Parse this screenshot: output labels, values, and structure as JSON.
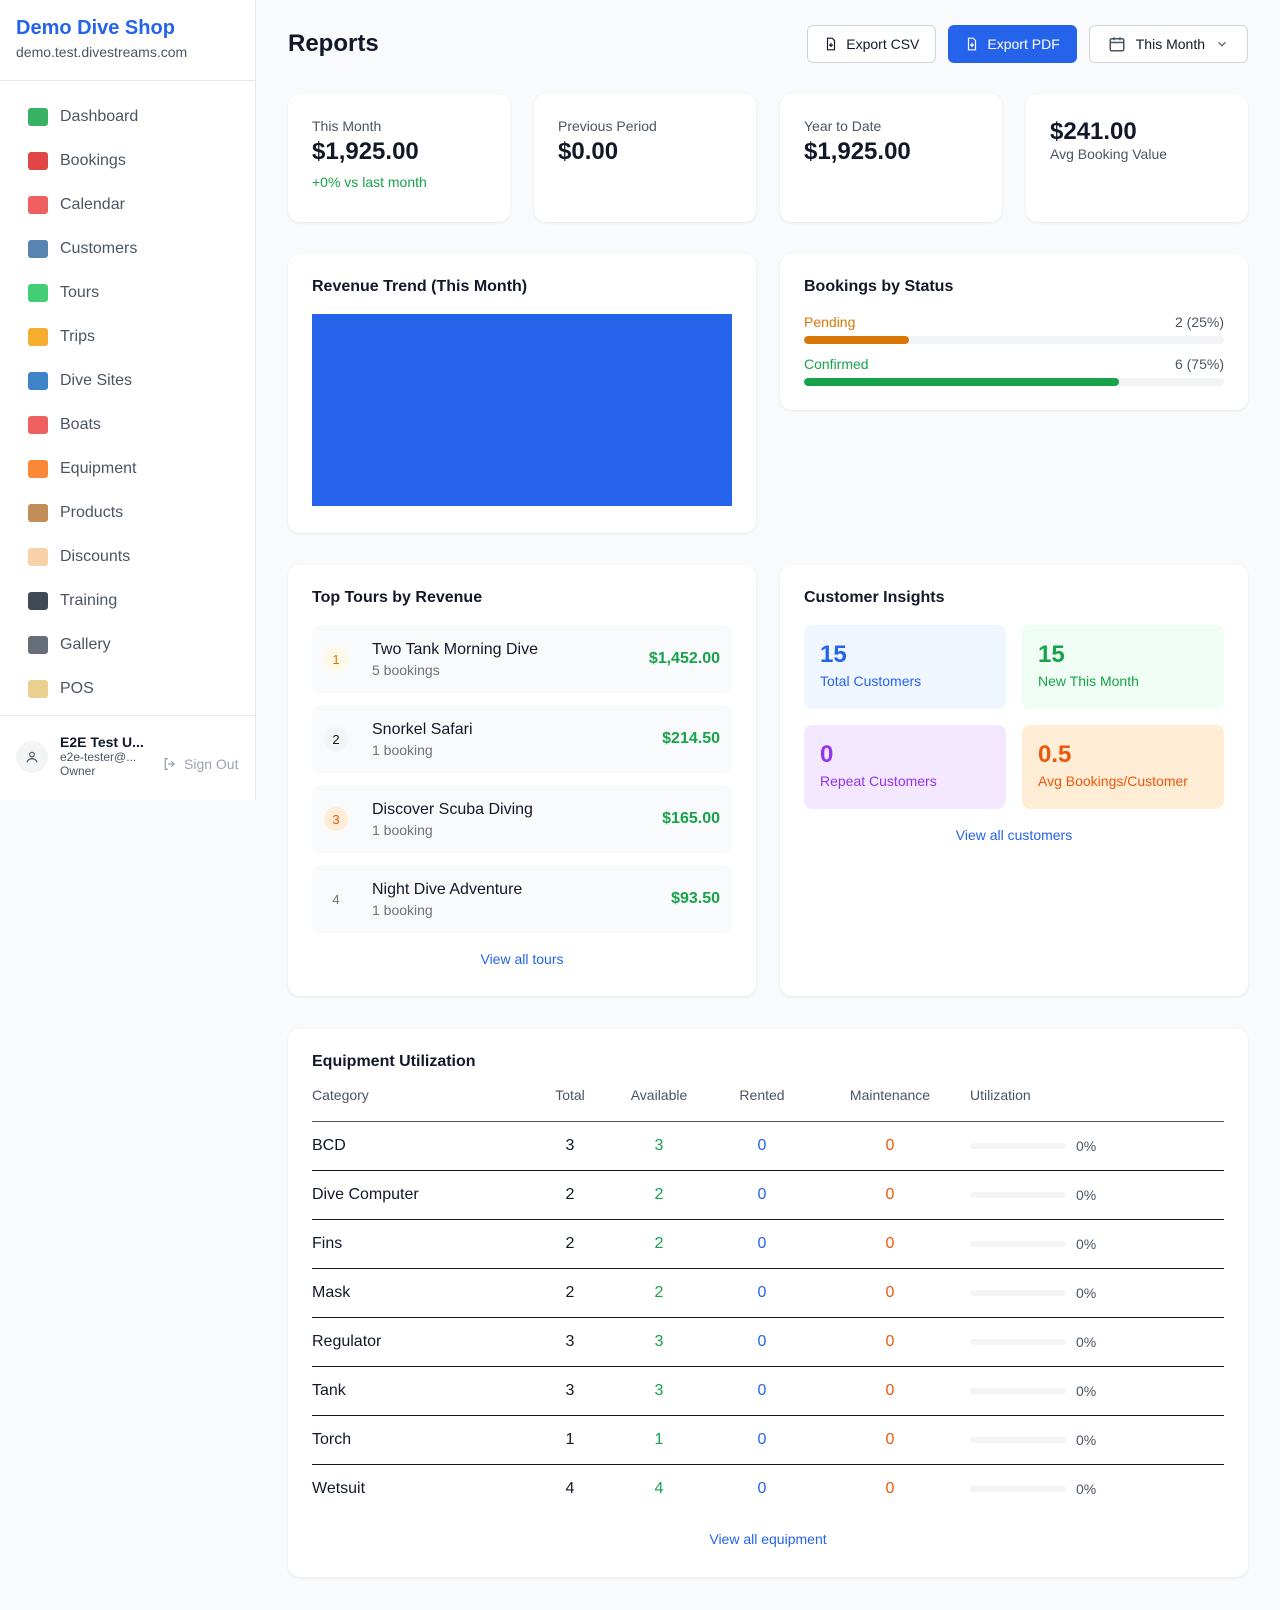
{
  "sidebar": {
    "brand": "Demo Dive Shop",
    "url": "demo.test.divestreams.com",
    "items": [
      {
        "label": "Dashboard",
        "icon": "bar-chart-icon",
        "color": "#16a34a"
      },
      {
        "label": "Bookings",
        "icon": "calendar-date-icon",
        "color": "#dc2626"
      },
      {
        "label": "Calendar",
        "icon": "spiral-calendar-icon",
        "color": "#ef4444"
      },
      {
        "label": "Customers",
        "icon": "users-icon",
        "color": "#3b6ea5"
      },
      {
        "label": "Tours",
        "icon": "island-icon",
        "color": "#22c55e"
      },
      {
        "label": "Trips",
        "icon": "speedboat-icon",
        "color": "#f59e0b"
      },
      {
        "label": "Dive Sites",
        "icon": "wave-icon",
        "color": "#1d6fbf"
      },
      {
        "label": "Boats",
        "icon": "sailboat-icon",
        "color": "#ef4444"
      },
      {
        "label": "Equipment",
        "icon": "diving-mask-icon",
        "color": "#f97316"
      },
      {
        "label": "Products",
        "icon": "package-icon",
        "color": "#b7793a"
      },
      {
        "label": "Discounts",
        "icon": "tag-icon",
        "color": "#f8c99a"
      },
      {
        "label": "Training",
        "icon": "graduation-cap-icon",
        "color": "#1f2937"
      },
      {
        "label": "Gallery",
        "icon": "camera-icon",
        "color": "#4b5563"
      },
      {
        "label": "POS",
        "icon": "credit-card-icon",
        "color": "#e5c87a"
      }
    ],
    "user": {
      "name": "E2E Test U...",
      "email": "e2e-tester@...",
      "role": "Owner",
      "signout": "Sign Out"
    }
  },
  "header": {
    "title": "Reports",
    "export_csv": "Export CSV",
    "export_pdf": "Export PDF",
    "period": "This Month"
  },
  "stats": [
    {
      "label": "This Month",
      "value": "$1,925.00",
      "sub": "+0% vs last month"
    },
    {
      "label": "Previous Period",
      "value": "$0.00"
    },
    {
      "label": "Year to Date",
      "value": "$1,925.00"
    },
    {
      "value": "$241.00",
      "label": "Avg Booking Value"
    }
  ],
  "revenue": {
    "title": "Revenue Trend (This Month)",
    "color": "#2563eb"
  },
  "status": {
    "title": "Bookings by Status",
    "rows": [
      {
        "label": "Pending",
        "value": "2 (25%)",
        "percent": 25,
        "color": "#d97706"
      },
      {
        "label": "Confirmed",
        "value": "6 (75%)",
        "percent": 75,
        "color": "#16a34a"
      }
    ]
  },
  "tours": {
    "title": "Top Tours by Revenue",
    "link": "View all tours",
    "items": [
      {
        "rank": "1",
        "name": "Two Tank Morning Dive",
        "count": "5 bookings",
        "amount": "$1,452.00",
        "bg": "#fef9e7",
        "fg": "#d97706"
      },
      {
        "rank": "2",
        "name": "Snorkel Safari",
        "count": "1 booking",
        "amount": "$214.50",
        "bg": "#f3f4f6",
        "fg": "#111827"
      },
      {
        "rank": "3",
        "name": "Discover Scuba Diving",
        "count": "1 booking",
        "amount": "$165.00",
        "bg": "#ffedd5",
        "fg": "#ea580c"
      },
      {
        "rank": "4",
        "name": "Night Dive Adventure",
        "count": "1 booking",
        "amount": "$93.50",
        "bg": "transparent",
        "fg": "#6b7280"
      }
    ]
  },
  "insights": {
    "title": "Customer Insights",
    "link": "View all customers",
    "items": [
      {
        "value": "15",
        "label": "Total Customers",
        "bg": "#eff6ff",
        "fg": "#2563eb"
      },
      {
        "value": "15",
        "label": "New This Month",
        "bg": "#f0fdf4",
        "fg": "#16a34a"
      },
      {
        "value": "0",
        "label": "Repeat Customers",
        "bg": "#f3e8ff",
        "fg": "#9333ea"
      },
      {
        "value": "0.5",
        "label": "Avg Bookings/Customer",
        "bg": "#ffedd5",
        "fg": "#ea580c"
      }
    ]
  },
  "equipment": {
    "title": "Equipment Utilization",
    "link": "View all equipment",
    "columns": [
      "Category",
      "Total",
      "Available",
      "Rented",
      "Maintenance",
      "Utilization"
    ],
    "rows": [
      {
        "category": "BCD",
        "total": "3",
        "available": "3",
        "rented": "0",
        "maintenance": "0",
        "utilization": "0%"
      },
      {
        "category": "Dive Computer",
        "total": "2",
        "available": "2",
        "rented": "0",
        "maintenance": "0",
        "utilization": "0%"
      },
      {
        "category": "Fins",
        "total": "2",
        "available": "2",
        "rented": "0",
        "maintenance": "0",
        "utilization": "0%"
      },
      {
        "category": "Mask",
        "total": "2",
        "available": "2",
        "rented": "0",
        "maintenance": "0",
        "utilization": "0%"
      },
      {
        "category": "Regulator",
        "total": "3",
        "available": "3",
        "rented": "0",
        "maintenance": "0",
        "utilization": "0%"
      },
      {
        "category": "Tank",
        "total": "3",
        "available": "3",
        "rented": "0",
        "maintenance": "0",
        "utilization": "0%"
      },
      {
        "category": "Torch",
        "total": "1",
        "available": "1",
        "rented": "0",
        "maintenance": "0",
        "utilization": "0%"
      },
      {
        "category": "Wetsuit",
        "total": "4",
        "available": "4",
        "rented": "0",
        "maintenance": "0",
        "utilization": "0%"
      }
    ]
  }
}
